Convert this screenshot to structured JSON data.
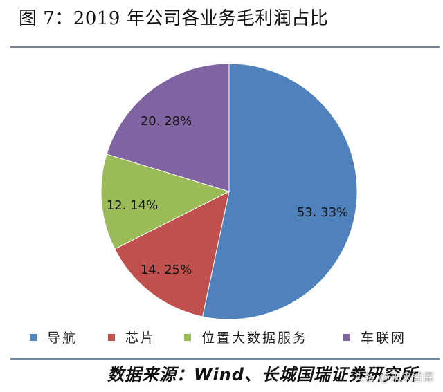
{
  "header": {
    "title": "图 7：2019 年公司各业务毛利润占比"
  },
  "chart_data": {
    "type": "pie",
    "title": "2019 年公司各业务毛利润占比",
    "categories": [
      "导航",
      "芯片",
      "位置大数据服务",
      "车联网"
    ],
    "values": [
      53.33,
      14.25,
      12.14,
      20.28
    ],
    "unit": "%",
    "labels": [
      "53. 33%",
      "14. 25%",
      "12. 14%",
      "20. 28%"
    ],
    "colors": [
      "#4f81bd",
      "#c0504d",
      "#9bbb59",
      "#8064a2"
    ],
    "start_angle": "12 o'clock",
    "direction": "clockwise",
    "legend_position": "bottom"
  },
  "legend": {
    "items": [
      {
        "label": "导航",
        "color": "#4f81bd"
      },
      {
        "label": "芯片",
        "color": "#c0504d"
      },
      {
        "label": "位置大数据服务",
        "color": "#9bbb59"
      },
      {
        "label": "车联网",
        "color": "#8064a2"
      }
    ]
  },
  "footer": {
    "source": "数据来源：Wind、长城国瑞证券研究所",
    "watermark": "头条 @未来智库"
  }
}
